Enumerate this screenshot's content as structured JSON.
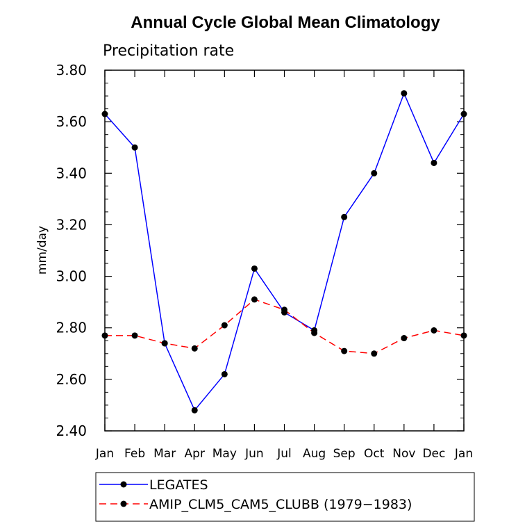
{
  "chart_data": {
    "type": "line",
    "title": "Annual Cycle Global Mean Climatology",
    "subtitle": "Precipitation rate",
    "ylabel": "mm/day",
    "xlabel": "",
    "categories": [
      "Jan",
      "Feb",
      "Mar",
      "Apr",
      "May",
      "Jun",
      "Jul",
      "Aug",
      "Sep",
      "Oct",
      "Nov",
      "Dec",
      "Jan"
    ],
    "ylim": [
      2.4,
      3.8
    ],
    "yticks": [
      "2.40",
      "2.60",
      "2.80",
      "3.00",
      "3.20",
      "3.40",
      "3.60",
      "3.80"
    ],
    "grid": false,
    "legend_position": "bottom",
    "series": [
      {
        "name": "LEGATES",
        "color": "#0000ff",
        "dash": "solid",
        "values": [
          3.63,
          3.5,
          2.74,
          2.48,
          2.62,
          3.03,
          2.86,
          2.79,
          3.23,
          3.4,
          3.71,
          3.44,
          3.63
        ]
      },
      {
        "name": "AMIP_CLM5_CAM5_CLUBB (1979−1983)",
        "color": "#ff0000",
        "dash": "dashed",
        "values": [
          2.77,
          2.77,
          2.74,
          2.72,
          2.81,
          2.91,
          2.87,
          2.78,
          2.71,
          2.7,
          2.76,
          2.79,
          2.77
        ]
      }
    ]
  }
}
